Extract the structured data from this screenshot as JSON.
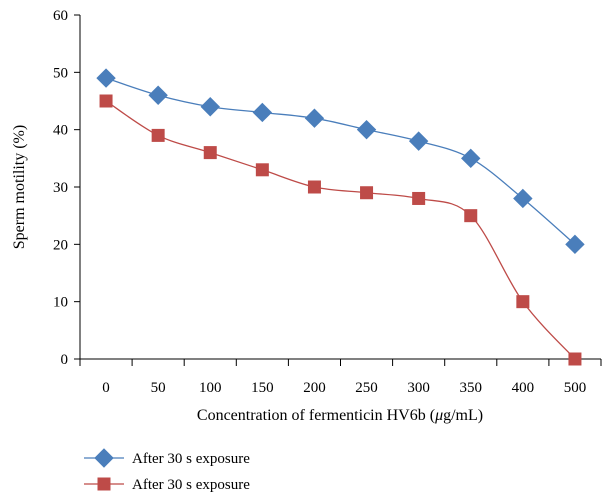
{
  "chart_data": {
    "type": "line",
    "categories": [
      "0",
      "50",
      "100",
      "150",
      "200",
      "250",
      "300",
      "350",
      "400",
      "500"
    ],
    "series": [
      {
        "name": "After 30 s exposure",
        "values": [
          49,
          46,
          44,
          43,
          42,
          40,
          38,
          35,
          28,
          20
        ],
        "color": "#4a7ebb",
        "marker": "diamond"
      },
      {
        "name": "After 30 s exposure",
        "values": [
          45,
          39,
          36,
          33,
          30,
          29,
          28,
          25,
          10,
          0
        ],
        "color": "#be4b48",
        "marker": "square"
      }
    ],
    "title": "",
    "xlabel_prefix": "Concentration of fermenticin HV6b (",
    "xlabel_unit_mu": "μ",
    "xlabel_unit_rest": "g/mL)",
    "ylabel": "Sperm motility (%)",
    "ylim": [
      0,
      60
    ],
    "yticks": [
      "0",
      "10",
      "20",
      "30",
      "40",
      "50",
      "60"
    ],
    "grid": false,
    "legend_position": "bottom-left",
    "smooth_lines": true
  }
}
